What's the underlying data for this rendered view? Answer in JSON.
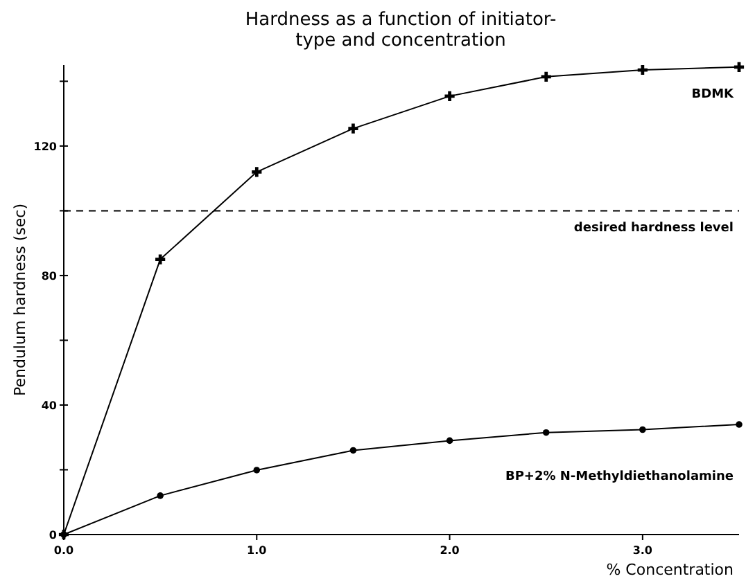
{
  "chart_data": {
    "type": "line",
    "title": "Hardness as a function of initiator-\ntype and concentration",
    "xlabel": "% Concentration",
    "ylabel": "Pendulum hardness (sec)",
    "x": [
      0,
      0.5,
      1,
      1.5,
      2,
      2.5,
      3,
      3.5
    ],
    "series": [
      {
        "name": "BDMK",
        "color": "#000000",
        "marker": "cross",
        "values": [
          0,
          85,
          112,
          125.4,
          135.4,
          141.4,
          143.5,
          144.4
        ]
      },
      {
        "name": "BP+2% N-Methyldiethanolamine",
        "color": "#000000",
        "marker": "circle",
        "values": [
          0,
          12,
          19.9,
          26,
          29,
          31.5,
          32.4,
          34
        ]
      }
    ],
    "xlim": [
      0,
      3.5
    ],
    "ylim": [
      0,
      145
    ],
    "xticks": [
      {
        "value": 0,
        "label": "0.0"
      },
      {
        "value": 1,
        "label": "1.0"
      },
      {
        "value": 2,
        "label": "2.0"
      },
      {
        "value": 3,
        "label": "3.0"
      }
    ],
    "yticks": [
      0,
      {
        "value": 20,
        "label": null
      },
      40,
      {
        "value": 60,
        "label": null
      },
      80,
      {
        "value": 100,
        "label": null
      },
      120,
      {
        "value": 140,
        "label": null
      }
    ],
    "ref_lines": [
      {
        "axis": "y",
        "value": 100,
        "label": "desired hardness level",
        "line_style": "dashed",
        "color": "#000000"
      }
    ],
    "grid": false,
    "line_style": "solid"
  }
}
